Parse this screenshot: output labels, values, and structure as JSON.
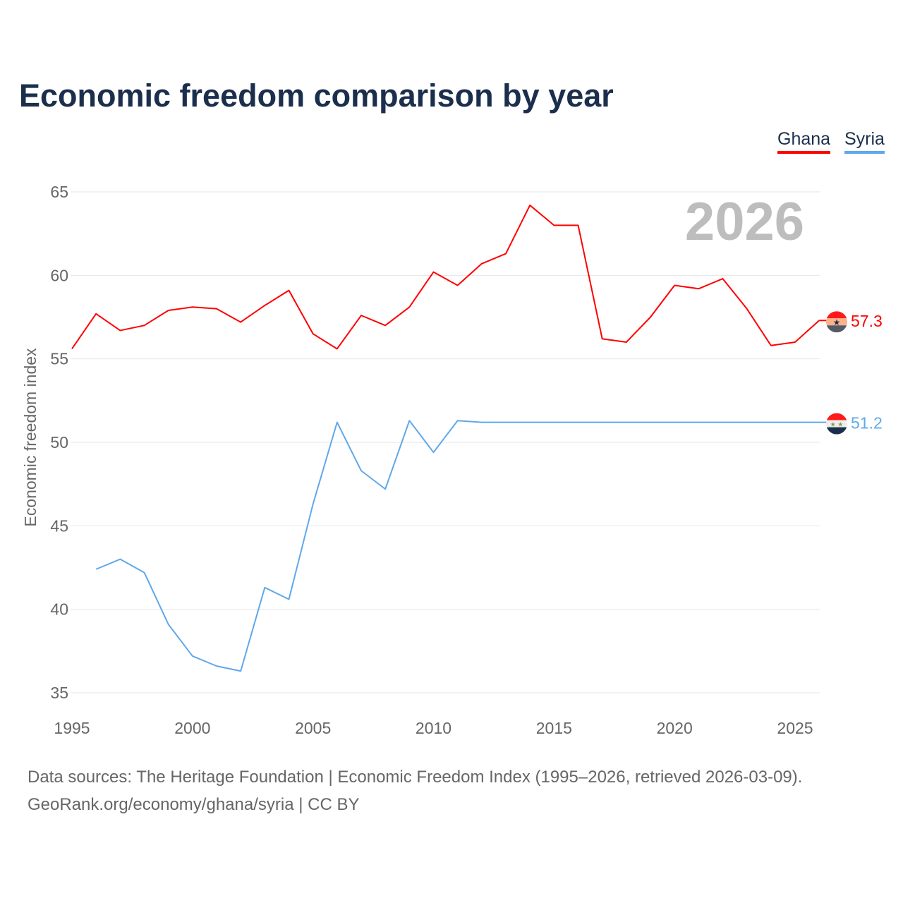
{
  "title": "Economic freedom comparison by year",
  "footer": {
    "line1": "Data sources: The Heritage Foundation | Economic Freedom Index (1995–2026, retrieved 2026-03-09).",
    "line2": "GeoRank.org/economy/ghana/syria | CC BY"
  },
  "chart_data": {
    "type": "line",
    "title": "Economic freedom comparison by year",
    "xlabel": "",
    "ylabel": "Economic freedom index",
    "year_watermark": "2026",
    "xlim": [
      1995,
      2026
    ],
    "ylim": [
      35,
      65
    ],
    "yticks": [
      35,
      40,
      45,
      50,
      55,
      60,
      65
    ],
    "xticks": [
      1995,
      2000,
      2005,
      2010,
      2015,
      2020,
      2025
    ],
    "grid": true,
    "legend_position": "top-right",
    "series": [
      {
        "name": "Ghana",
        "color": "#ff0000",
        "end_label": "57.3",
        "flag": "ghana-flag-icon",
        "x": [
          1995,
          1996,
          1997,
          1998,
          1999,
          2000,
          2001,
          2002,
          2003,
          2004,
          2005,
          2006,
          2007,
          2008,
          2009,
          2010,
          2011,
          2012,
          2013,
          2014,
          2015,
          2016,
          2017,
          2018,
          2019,
          2020,
          2021,
          2022,
          2023,
          2024,
          2025,
          2026
        ],
        "values": [
          55.6,
          57.7,
          56.7,
          57.0,
          57.9,
          58.1,
          58.0,
          57.2,
          58.2,
          59.1,
          56.5,
          55.6,
          57.6,
          57.0,
          58.1,
          60.2,
          59.4,
          60.7,
          61.3,
          64.2,
          63.0,
          63.0,
          56.2,
          56.0,
          57.5,
          59.4,
          59.2,
          59.8,
          58.0,
          55.8,
          56.0,
          57.3
        ]
      },
      {
        "name": "Syria",
        "color": "#5fa8ea",
        "end_label": "51.2",
        "flag": "syria-flag-icon",
        "x": [
          1996,
          1997,
          1998,
          1999,
          2000,
          2001,
          2002,
          2003,
          2004,
          2005,
          2006,
          2007,
          2008,
          2009,
          2010,
          2011,
          2012,
          2026
        ],
        "values": [
          42.4,
          43.0,
          42.2,
          39.1,
          37.2,
          36.6,
          36.3,
          41.3,
          40.6,
          46.3,
          51.2,
          48.3,
          47.2,
          51.3,
          49.4,
          51.3,
          51.2,
          51.2
        ]
      }
    ]
  }
}
